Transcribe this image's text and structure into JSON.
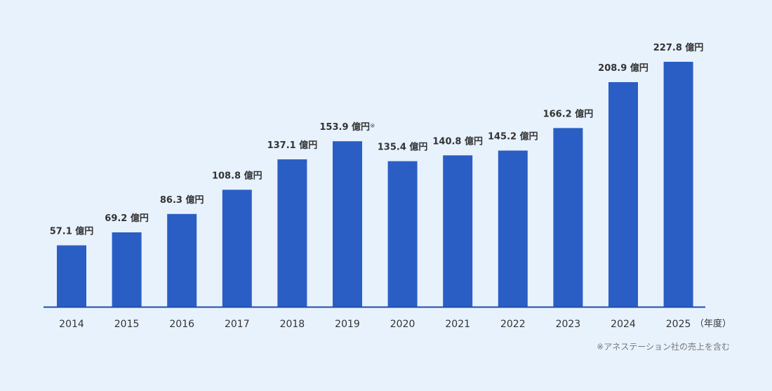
{
  "colors": {
    "background": "#e8f2fd",
    "bar": "#2a5ec4",
    "axis": "#1f4fa8",
    "text": "#333333",
    "footnote": "#777777"
  },
  "chart_data": {
    "type": "bar",
    "categories": [
      "2014",
      "2015",
      "2016",
      "2017",
      "2018",
      "2019",
      "2020",
      "2021",
      "2022",
      "2023",
      "2024",
      "2025"
    ],
    "values": [
      57.1,
      69.2,
      86.3,
      108.8,
      137.1,
      153.9,
      135.4,
      140.8,
      145.2,
      166.2,
      208.9,
      227.8
    ],
    "data_labels": [
      "57.1 億円",
      "69.2 億円",
      "86.3 億円",
      "108.8 億円",
      "137.1 億円",
      "153.9 億円",
      "135.4 億円",
      "140.8 億円",
      "145.2 億円",
      "166.2 億円",
      "208.9 億円",
      "227.8 億円"
    ],
    "annotated_index": 5,
    "annotation_mark": "※",
    "x_unit_label": "（年度）",
    "footnote": "※アネステーション社の売上を含む",
    "ylim": [
      0,
      240
    ],
    "grid": false,
    "legend": "none"
  }
}
